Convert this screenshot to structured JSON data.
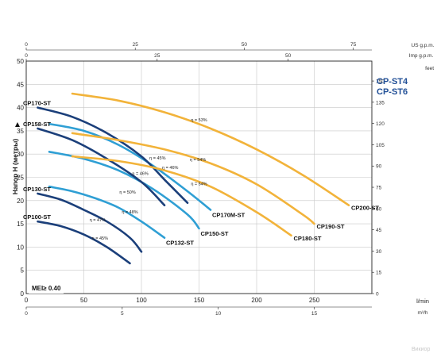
{
  "titles": {
    "line1": "CP-ST4",
    "line2": "CP-ST6"
  },
  "axes": {
    "ylabel": "Напор H (метры)",
    "x_unit_main": "l/min",
    "x_unit_m3h": "m³/h",
    "x_unit_us": "US g.p.m.",
    "x_unit_imp": "Imp g.p.m.",
    "y_unit_feet": "feet",
    "x_ticks_lmin": [
      "0",
      "50",
      "100",
      "150",
      "200",
      "250"
    ],
    "x_ticks_m3h": [
      "0",
      "5",
      "10",
      "15"
    ],
    "x_ticks_us": [
      "0",
      "25",
      "50",
      "75"
    ],
    "x_ticks_imp": [
      "0",
      "25",
      "50"
    ],
    "y_ticks_m": [
      "0",
      "5",
      "10",
      "15",
      "20",
      "25",
      "30",
      "35",
      "40",
      "45",
      "50"
    ],
    "y_ticks_ft": [
      "0",
      "15",
      "30",
      "45",
      "60",
      "75",
      "90",
      "105",
      "120",
      "135",
      "150"
    ],
    "xlim": [
      0,
      300
    ],
    "ylim": [
      0,
      50
    ]
  },
  "mei": "MEI≥ 0.40",
  "watermark": "Викиор",
  "colors": {
    "yellow": "#f2b33a",
    "dark_blue": "#1b3f7a",
    "light_blue": "#2f9fd4",
    "mid_blue": "#2a6fb5"
  },
  "chart_data": {
    "type": "line",
    "xlabel": "l/min",
    "ylabel": "Напор H (метры)",
    "xlim": [
      0,
      300
    ],
    "ylim": [
      0,
      50
    ],
    "grid": true,
    "series": [
      {
        "name": "CP100-ST",
        "color": "dark_blue",
        "x": [
          10,
          30,
          50,
          70,
          90
        ],
        "y": [
          15.5,
          14.5,
          12.7,
          10,
          6.5
        ]
      },
      {
        "name": "CP130-ST",
        "color": "dark_blue",
        "x": [
          10,
          30,
          50,
          70,
          90,
          100
        ],
        "y": [
          21.5,
          20.2,
          18,
          15.5,
          12,
          9
        ]
      },
      {
        "name": "CP132-ST",
        "color": "light_blue",
        "x": [
          20,
          40,
          60,
          80,
          100,
          120
        ],
        "y": [
          23,
          22,
          20.5,
          18.5,
          15.5,
          12
        ]
      },
      {
        "name": "CP150-ST",
        "color": "light_blue",
        "x": [
          20,
          50,
          80,
          110,
          140,
          150
        ],
        "y": [
          30.5,
          29,
          26.5,
          22.5,
          17,
          14
        ]
      },
      {
        "name": "CP158-ST",
        "color": "dark_blue",
        "x": [
          10,
          40,
          70,
          100,
          120
        ],
        "y": [
          35.5,
          33,
          29,
          24,
          19
        ]
      },
      {
        "name": "CP170M-ST",
        "color": "light_blue",
        "x": [
          20,
          50,
          80,
          110,
          140,
          160
        ],
        "y": [
          36.5,
          35,
          32,
          27.5,
          22,
          18
        ]
      },
      {
        "name": "CP170-ST",
        "color": "dark_blue",
        "x": [
          10,
          40,
          70,
          100,
          120,
          140
        ],
        "y": [
          40,
          38,
          34.5,
          29.5,
          24.5,
          19.5
        ]
      },
      {
        "name": "CP180-ST",
        "color": "yellow",
        "x": [
          40,
          80,
          120,
          160,
          200,
          230
        ],
        "y": [
          29.5,
          28.5,
          26.5,
          23,
          17.5,
          12.5
        ]
      },
      {
        "name": "CP190-ST",
        "color": "yellow",
        "x": [
          40,
          80,
          120,
          160,
          200,
          240,
          250
        ],
        "y": [
          34.5,
          33,
          31,
          28,
          23.5,
          17,
          15
        ]
      },
      {
        "name": "CP200-ST",
        "color": "yellow",
        "x": [
          40,
          80,
          120,
          160,
          200,
          240,
          280
        ],
        "y": [
          43,
          41.5,
          39,
          35.5,
          31,
          25.5,
          19
        ]
      }
    ],
    "annotations": [
      {
        "text": "η = 53%",
        "x": 150,
        "y": 37
      },
      {
        "text": "η = 54%",
        "x": 149,
        "y": 28.5
      },
      {
        "text": "η = 54%",
        "x": 150,
        "y": 23.3
      },
      {
        "text": "η = 45%",
        "x": 114,
        "y": 28.8
      },
      {
        "text": "η = 46%",
        "x": 125,
        "y": 26.8
      },
      {
        "text": "η = 46%",
        "x": 99,
        "y": 25.5
      },
      {
        "text": "η = 50%",
        "x": 88,
        "y": 21.5
      },
      {
        "text": "η = 48%",
        "x": 90,
        "y": 17.2
      },
      {
        "text": "η = 47%",
        "x": 62,
        "y": 15.5
      },
      {
        "text": "η = 45%",
        "x": 64,
        "y": 11.6
      }
    ]
  }
}
